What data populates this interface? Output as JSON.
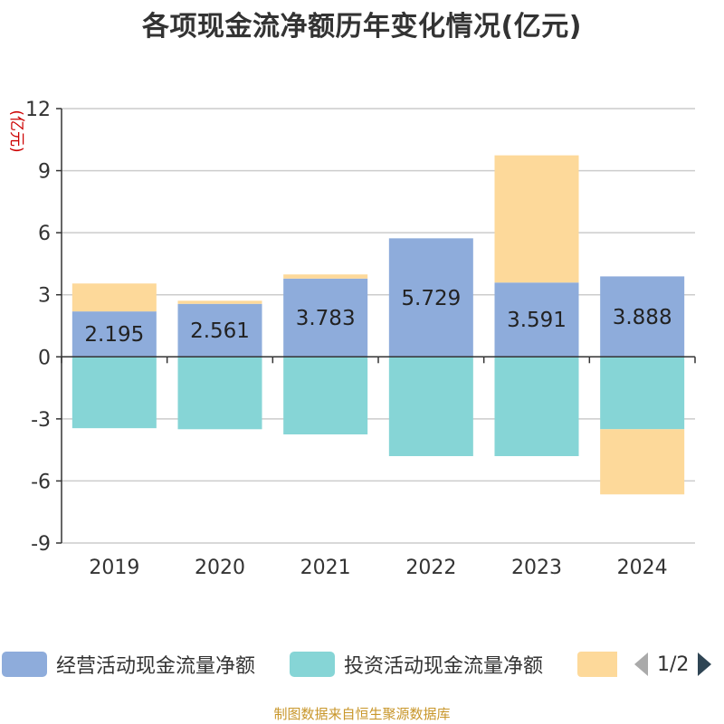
{
  "title": "各项现金流净额历年变化情况(亿元)",
  "footer": "制图数据来自恒生聚源数据库",
  "colors": {
    "operating": "#8eacdb",
    "investing": "#86d5d6",
    "financing": "#fdd99a",
    "axis": "#333333",
    "grid": "#cccccc",
    "unit": "#cc0000"
  },
  "legend": {
    "items": [
      {
        "label": "经营活动现金流量净额",
        "color": "#8eacdb"
      },
      {
        "label": "投资活动现金流量净额",
        "color": "#86d5d6"
      },
      {
        "label": "",
        "color": "#fdd99a"
      }
    ],
    "page": "1/2",
    "prev_icon": "triangle-left-icon",
    "next_icon": "triangle-right-icon"
  },
  "chart_data": {
    "type": "bar",
    "stacked": true,
    "title": "各项现金流净额历年变化情况(亿元)",
    "ylabel": "(亿元)",
    "xlabel": "",
    "categories": [
      "2019",
      "2020",
      "2021",
      "2022",
      "2023",
      "2024"
    ],
    "ylim": [
      -9,
      12
    ],
    "yticks": [
      12,
      9,
      6,
      3,
      0,
      -3,
      -6,
      -9
    ],
    "grid": true,
    "legend_position": "bottom",
    "series": [
      {
        "name": "经营活动现金流量净额",
        "values": [
          2.195,
          2.561,
          3.783,
          5.729,
          3.591,
          3.888
        ],
        "labels": [
          "2.195",
          "2.561",
          "3.783",
          "5.729",
          "3.591",
          "3.888"
        ]
      },
      {
        "name": "投资活动现金流量净额",
        "values": [
          -3.45,
          -3.5,
          -3.75,
          -4.8,
          -4.8,
          -3.5
        ]
      },
      {
        "name": "",
        "values": [
          1.35,
          0.15,
          0.2,
          0,
          6.15,
          -3.15
        ]
      }
    ]
  }
}
